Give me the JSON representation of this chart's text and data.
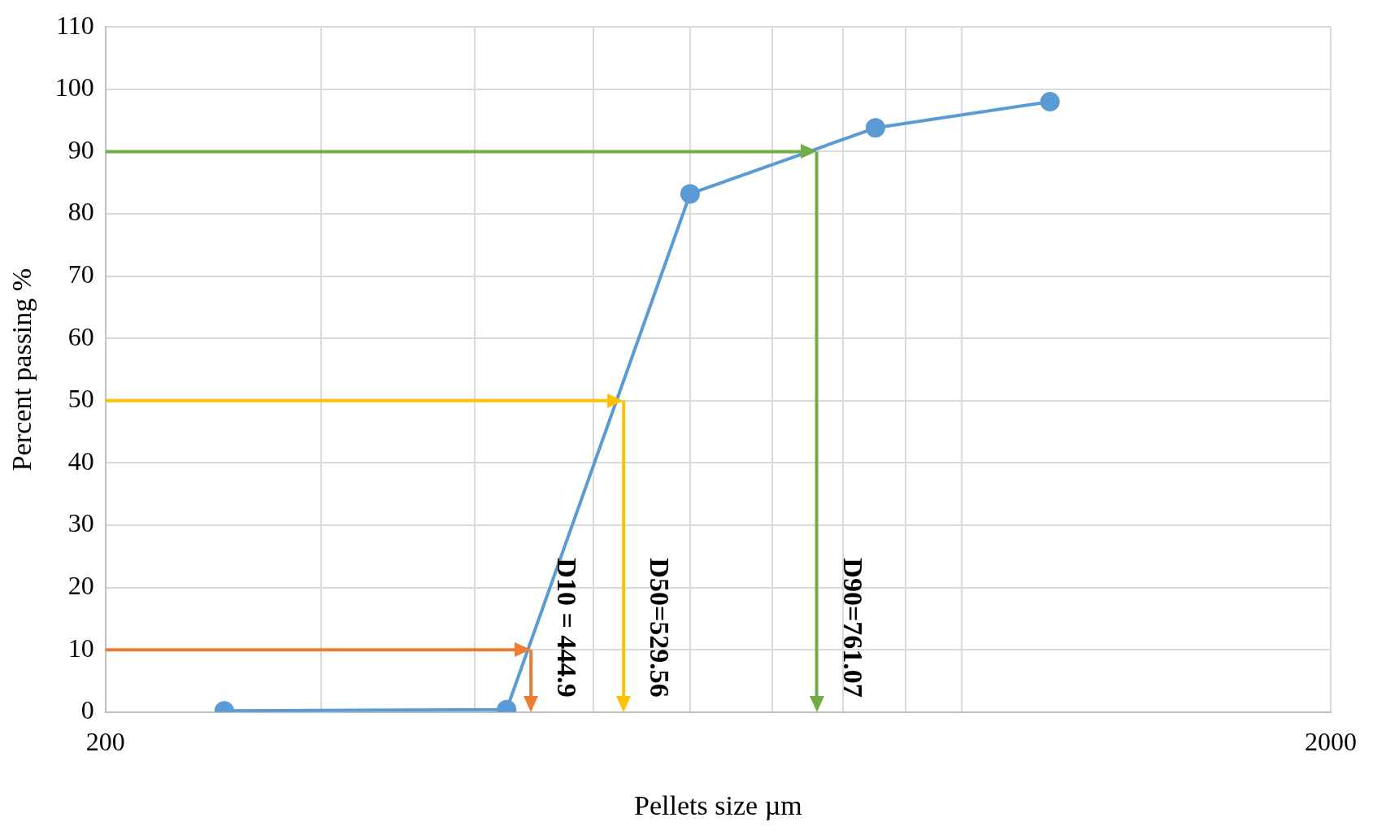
{
  "chart_data": {
    "type": "line",
    "xlabel": "Pellets size µm",
    "ylabel": "Percent passing %",
    "log": "x",
    "grid": true,
    "legend": false,
    "xlim": [
      200,
      2000
    ],
    "xticks": [
      {
        "value": 200,
        "label": "200"
      },
      {
        "value": 300,
        "label": null
      },
      {
        "value": 400,
        "label": null
      },
      {
        "value": 500,
        "label": null
      },
      {
        "value": 600,
        "label": null
      },
      {
        "value": 700,
        "label": null
      },
      {
        "value": 800,
        "label": null
      },
      {
        "value": 900,
        "label": null
      },
      {
        "value": 1000,
        "label": null
      },
      {
        "value": 2000,
        "label": "2000"
      }
    ],
    "ylim": [
      0,
      110
    ],
    "yticks": [
      0,
      10,
      20,
      30,
      40,
      50,
      60,
      70,
      80,
      90,
      100,
      110
    ],
    "series": [
      {
        "color": "#5b9bd5",
        "marker": "circle",
        "x": [
          250,
          425,
          600,
          850,
          1180
        ],
        "values": [
          0.2,
          0.4,
          83.2,
          93.8,
          98.0
        ]
      }
    ],
    "ref_lines": [
      {
        "axis": "y",
        "value": 10,
        "color": "#ed7d31"
      },
      {
        "axis": "x",
        "value": 444.9,
        "label": "D10 = 444.9",
        "color": "#ed7d31"
      },
      {
        "axis": "y",
        "value": 50,
        "color": "#ffc000"
      },
      {
        "axis": "x",
        "value": 529.56,
        "label": "D50=529.56",
        "color": "#ffc000"
      },
      {
        "axis": "y",
        "value": 90,
        "color": "#70ad47"
      },
      {
        "axis": "x",
        "value": 761.07,
        "label": "D90=761.07",
        "color": "#70ad47"
      }
    ]
  }
}
